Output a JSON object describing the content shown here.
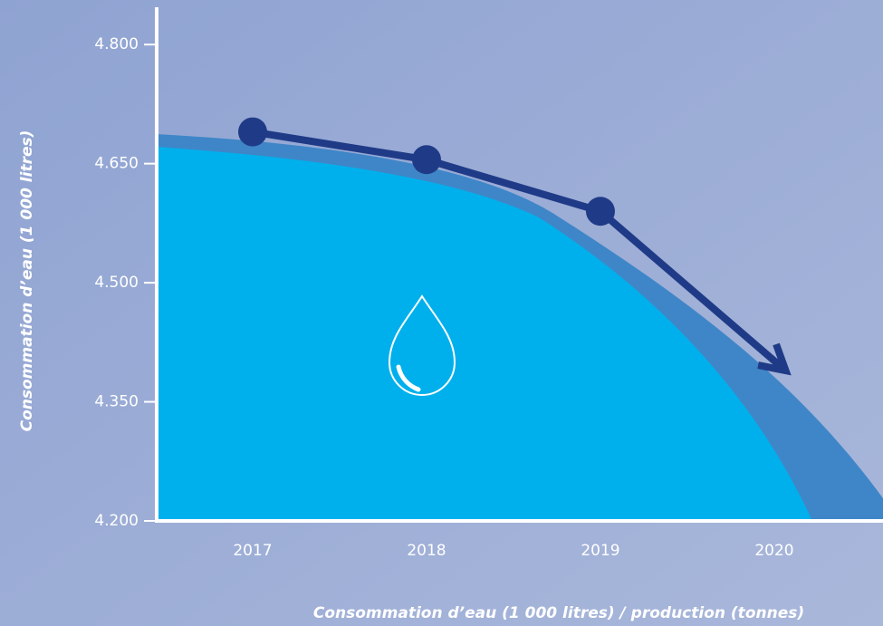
{
  "chart_data": {
    "type": "line",
    "y_label": "Consommation d’eau (1 000 litres)",
    "x_label": "Consommation d’eau (1 000 litres) / production (tonnes)",
    "categories": [
      "2017",
      "2018",
      "2019",
      "2020"
    ],
    "series": [
      {
        "name": "Consommation d’eau",
        "color": "#1f3b87",
        "values": [
          4.69,
          4.655,
          4.59,
          null
        ]
      }
    ],
    "ylim": [
      4.2,
      4.847
    ],
    "yticks": [
      {
        "value": 4.2,
        "label": "4.200"
      },
      {
        "value": 4.35,
        "label": "4.350"
      },
      {
        "value": 4.5,
        "label": "4.500"
      },
      {
        "value": 4.65,
        "label": "4.650"
      },
      {
        "value": 4.8,
        "label": "4.800"
      }
    ]
  }
}
